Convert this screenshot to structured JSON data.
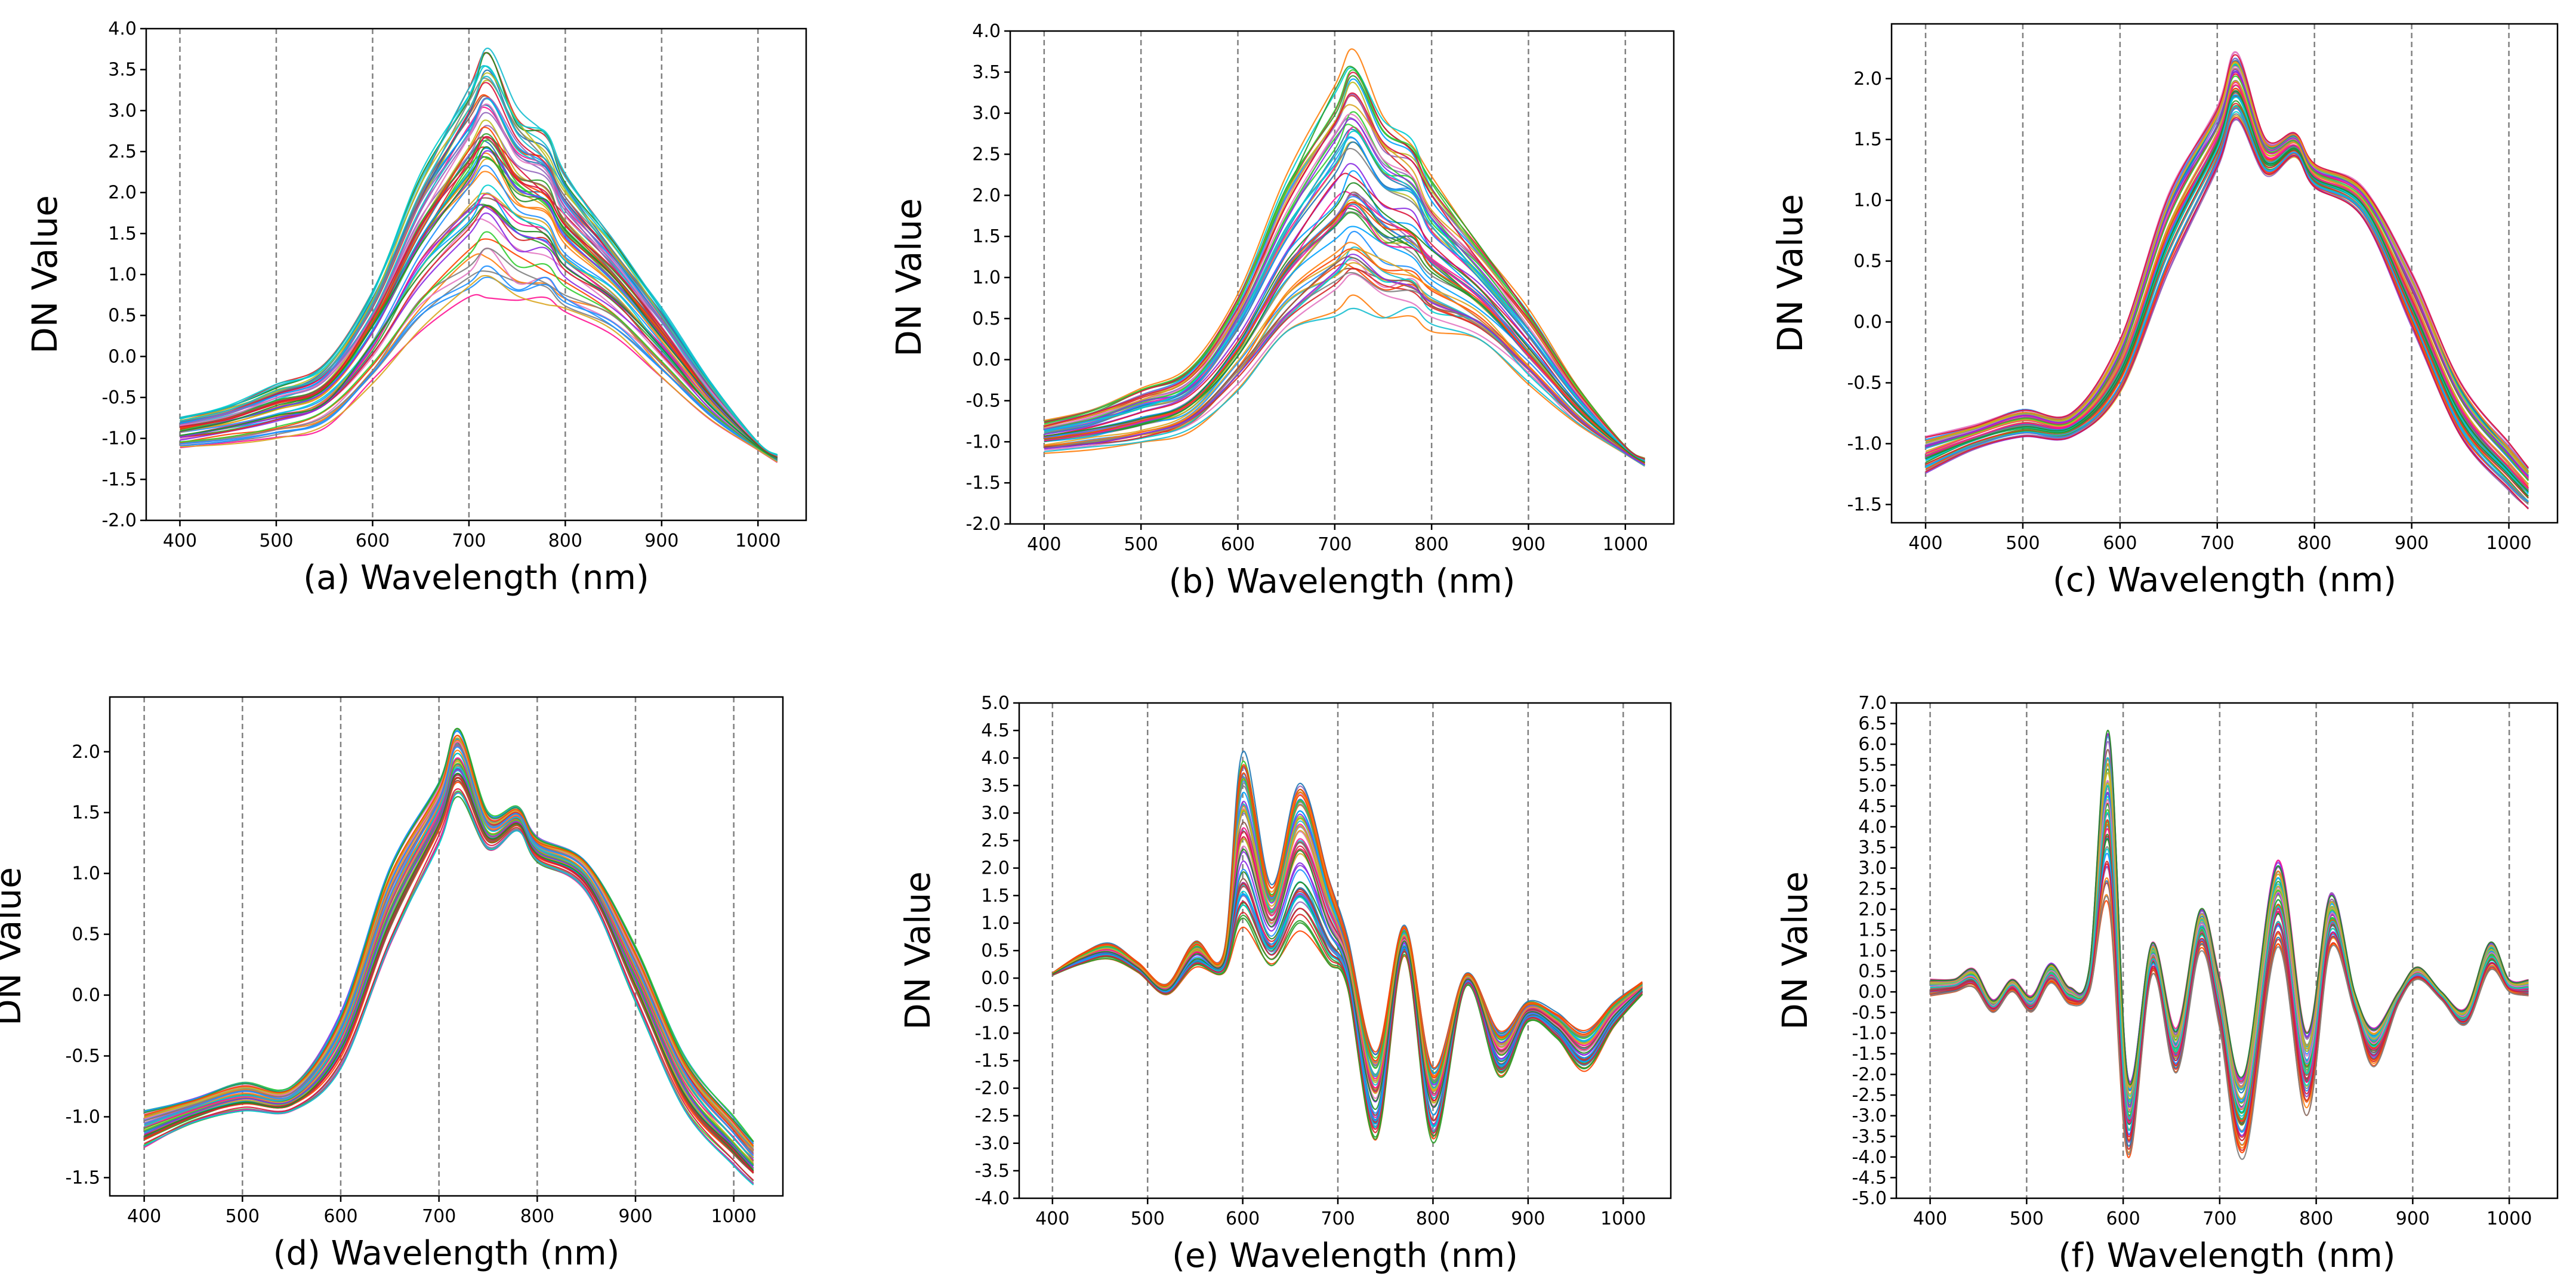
{
  "figure": {
    "background": "#ffffff",
    "axis_color": "#000000",
    "grid_color": "#808080",
    "palette": [
      "#1f77b4",
      "#ff7f0e",
      "#2ca02c",
      "#d62728",
      "#9467bd",
      "#8c564b",
      "#e377c2",
      "#7f7f7f",
      "#bcbd22",
      "#17becf",
      "#00a2ff",
      "#ff1493",
      "#32cd32",
      "#ff4500",
      "#1e90ff",
      "#daa520",
      "#8a2be2",
      "#00ced1",
      "#dc143c",
      "#228b22"
    ]
  },
  "chart_data": [
    {
      "id": "a",
      "type": "line",
      "title": "",
      "xlabel": "(a) Wavelength (nm)",
      "ylabel": "DN Value",
      "xlim": [
        365,
        1050
      ],
      "ylim": [
        -2.0,
        4.0
      ],
      "xticks": [
        400,
        500,
        600,
        700,
        800,
        900,
        1000
      ],
      "xtick_labels": [
        "400",
        "500",
        "600",
        "700",
        "800",
        "900",
        "1000"
      ],
      "yticks": [
        -2.0,
        -1.5,
        -1.0,
        -0.5,
        0.0,
        0.5,
        1.0,
        1.5,
        2.0,
        2.5,
        3.0,
        3.5,
        4.0
      ],
      "ytick_labels": [
        "-2.0",
        "-1.5",
        "-1.0",
        "-0.5",
        "0.0",
        "0.5",
        "1.0",
        "1.5",
        "2.0",
        "2.5",
        "3.0",
        "3.5",
        "4.0"
      ],
      "vgrid": [
        400,
        500,
        600,
        700,
        800,
        900,
        1000
      ],
      "series_count": 60,
      "wavelengths": [
        400,
        450,
        500,
        550,
        600,
        650,
        700,
        720,
        750,
        780,
        800,
        850,
        900,
        950,
        1000,
        1020
      ],
      "series_low": [
        -1.15,
        -1.1,
        -1.05,
        -0.9,
        -0.4,
        0.2,
        0.5,
        0.6,
        0.45,
        0.5,
        0.35,
        0.2,
        -0.3,
        -0.8,
        -1.15,
        -1.3
      ],
      "series_high": [
        -0.75,
        -0.6,
        -0.35,
        -0.1,
        0.8,
        2.2,
        3.3,
        3.7,
        3.0,
        2.7,
        2.2,
        1.4,
        0.6,
        -0.3,
        -1.05,
        -1.2
      ]
    },
    {
      "id": "b",
      "type": "line",
      "title": "",
      "xlabel": "(b) Wavelength (nm)",
      "ylabel": "DN Value",
      "xlim": [
        365,
        1050
      ],
      "ylim": [
        -2.0,
        4.0
      ],
      "xticks": [
        400,
        500,
        600,
        700,
        800,
        900,
        1000
      ],
      "xtick_labels": [
        "400",
        "500",
        "600",
        "700",
        "800",
        "900",
        "1000"
      ],
      "yticks": [
        -2.0,
        -1.5,
        -1.0,
        -0.5,
        0.0,
        0.5,
        1.0,
        1.5,
        2.0,
        2.5,
        3.0,
        3.5,
        4.0
      ],
      "ytick_labels": [
        "-2.0",
        "-1.5",
        "-1.0",
        "-0.5",
        "0.0",
        "0.5",
        "1.0",
        "1.5",
        "2.0",
        "2.5",
        "3.0",
        "3.5",
        "4.0"
      ],
      "vgrid": [
        400,
        500,
        600,
        700,
        800,
        900,
        1000
      ],
      "series_count": 60,
      "wavelengths": [
        400,
        450,
        500,
        550,
        600,
        650,
        700,
        720,
        750,
        780,
        800,
        850,
        900,
        950,
        1000,
        1020
      ],
      "series_low": [
        -1.15,
        -1.1,
        -1.05,
        -0.9,
        -0.4,
        0.2,
        0.5,
        0.6,
        0.45,
        0.5,
        0.35,
        0.2,
        -0.3,
        -0.8,
        -1.15,
        -1.3
      ],
      "series_high": [
        -0.75,
        -0.6,
        -0.35,
        -0.1,
        0.8,
        2.2,
        3.3,
        3.7,
        3.0,
        2.7,
        2.2,
        1.4,
        0.6,
        -0.3,
        -1.05,
        -1.2
      ]
    },
    {
      "id": "c",
      "type": "line",
      "title": "",
      "xlabel": "(c) Wavelength (nm)",
      "ylabel": "DN Value",
      "xlim": [
        365,
        1050
      ],
      "ylim": [
        -1.65,
        2.45
      ],
      "xticks": [
        400,
        500,
        600,
        700,
        800,
        900,
        1000
      ],
      "xtick_labels": [
        "400",
        "500",
        "600",
        "700",
        "800",
        "900",
        "1000"
      ],
      "yticks": [
        -1.5,
        -1.0,
        -0.5,
        0.0,
        0.5,
        1.0,
        1.5,
        2.0
      ],
      "ytick_labels": [
        "-1.5",
        "-1.0",
        "-0.5",
        "0.0",
        "0.5",
        "1.0",
        "1.5",
        "2.0"
      ],
      "vgrid": [
        400,
        500,
        600,
        700,
        800,
        900,
        1000
      ],
      "series_count": 60,
      "wavelengths": [
        400,
        450,
        500,
        550,
        600,
        650,
        700,
        720,
        750,
        780,
        800,
        850,
        900,
        950,
        1000,
        1020
      ],
      "series_low": [
        -1.25,
        -1.05,
        -0.95,
        -0.95,
        -0.6,
        0.4,
        1.25,
        1.65,
        1.2,
        1.35,
        1.1,
        0.85,
        -0.05,
        -0.95,
        -1.4,
        -1.55
      ],
      "series_high": [
        -0.95,
        -0.85,
        -0.72,
        -0.75,
        -0.15,
        1.05,
        1.75,
        2.2,
        1.5,
        1.55,
        1.3,
        1.1,
        0.4,
        -0.5,
        -1.0,
        -1.2
      ]
    },
    {
      "id": "d",
      "type": "line",
      "title": "",
      "xlabel": "(d) Wavelength (nm)",
      "ylabel": "DN Value",
      "xlim": [
        365,
        1050
      ],
      "ylim": [
        -1.65,
        2.45
      ],
      "xticks": [
        400,
        500,
        600,
        700,
        800,
        900,
        1000
      ],
      "xtick_labels": [
        "400",
        "500",
        "600",
        "700",
        "800",
        "900",
        "1000"
      ],
      "yticks": [
        -1.5,
        -1.0,
        -0.5,
        0.0,
        0.5,
        1.0,
        1.5,
        2.0
      ],
      "ytick_labels": [
        "-1.5",
        "-1.0",
        "-0.5",
        "0.0",
        "0.5",
        "1.0",
        "1.5",
        "2.0"
      ],
      "vgrid": [
        400,
        500,
        600,
        700,
        800,
        900,
        1000
      ],
      "series_count": 60,
      "wavelengths": [
        400,
        450,
        500,
        550,
        600,
        650,
        700,
        720,
        750,
        780,
        800,
        850,
        900,
        950,
        1000,
        1020
      ],
      "series_low": [
        -1.25,
        -1.05,
        -0.95,
        -0.95,
        -0.6,
        0.4,
        1.25,
        1.65,
        1.2,
        1.35,
        1.1,
        0.85,
        -0.05,
        -0.95,
        -1.4,
        -1.55
      ],
      "series_high": [
        -0.95,
        -0.85,
        -0.72,
        -0.75,
        -0.15,
        1.05,
        1.75,
        2.2,
        1.5,
        1.55,
        1.3,
        1.1,
        0.4,
        -0.5,
        -1.0,
        -1.2
      ]
    },
    {
      "id": "e",
      "type": "line",
      "title": "",
      "xlabel": "(e) Wavelength (nm)",
      "ylabel": "DN Value",
      "xlim": [
        365,
        1050
      ],
      "ylim": [
        -4.0,
        5.0
      ],
      "xticks": [
        400,
        500,
        600,
        700,
        800,
        900,
        1000
      ],
      "xtick_labels": [
        "400",
        "500",
        "600",
        "700",
        "800",
        "900",
        "1000"
      ],
      "yticks": [
        -4.0,
        -3.5,
        -3.0,
        -2.5,
        -2.0,
        -1.5,
        -1.0,
        -0.5,
        0.0,
        0.5,
        1.0,
        1.5,
        2.0,
        2.5,
        3.0,
        3.5,
        4.0,
        4.5,
        5.0
      ],
      "ytick_labels": [
        "-4.0",
        "-3.5",
        "-3.0",
        "-2.5",
        "-2.0",
        "-1.5",
        "-1.0",
        "-0.5",
        "0.0",
        "0.5",
        "1.0",
        "1.5",
        "2.0",
        "2.5",
        "3.0",
        "3.5",
        "4.0",
        "4.5",
        "5.0"
      ],
      "vgrid": [
        400,
        500,
        600,
        700,
        800,
        900,
        1000
      ],
      "series_count": 60,
      "wavelengths": [
        400,
        430,
        460,
        490,
        520,
        550,
        580,
        600,
        630,
        660,
        690,
        710,
        740,
        770,
        800,
        835,
        870,
        900,
        930,
        960,
        990,
        1020
      ],
      "series_low": [
        0.05,
        0.25,
        0.35,
        0.1,
        -0.3,
        0.2,
        0.1,
        0.8,
        0.2,
        0.9,
        0.2,
        -0.2,
        -3.0,
        0.4,
        -3.0,
        -0.15,
        -1.8,
        -0.8,
        -1.1,
        -1.7,
        -0.9,
        -0.3
      ],
      "series_high": [
        0.1,
        0.45,
        0.65,
        0.3,
        -0.1,
        0.7,
        0.5,
        4.3,
        1.8,
        3.8,
        2.0,
        0.8,
        -1.2,
        1.0,
        -1.5,
        0.1,
        -0.9,
        -0.4,
        -0.6,
        -0.9,
        -0.4,
        -0.05
      ]
    },
    {
      "id": "f",
      "type": "line",
      "title": "",
      "xlabel": "(f) Wavelength (nm)",
      "ylabel": "DN Value",
      "xlim": [
        365,
        1050
      ],
      "ylim": [
        -5.0,
        7.0
      ],
      "xticks": [
        400,
        500,
        600,
        700,
        800,
        900,
        1000
      ],
      "xtick_labels": [
        "400",
        "500",
        "600",
        "700",
        "800",
        "900",
        "1000"
      ],
      "yticks": [
        -5.0,
        -4.5,
        -4.0,
        -3.5,
        -3.0,
        -2.5,
        -2.0,
        -1.5,
        -1.0,
        -0.5,
        0.0,
        0.5,
        1.0,
        1.5,
        2.0,
        2.5,
        3.0,
        3.5,
        4.0,
        4.5,
        5.0,
        5.5,
        6.0,
        6.5,
        7.0
      ],
      "ytick_labels": [
        "-5.0",
        "-4.5",
        "-4.0",
        "-3.5",
        "-3.0",
        "-2.5",
        "-2.0",
        "-1.5",
        "-1.0",
        "-0.5",
        "0.0",
        "0.5",
        "1.0",
        "1.5",
        "2.0",
        "2.5",
        "3.0",
        "3.5",
        "4.0",
        "4.5",
        "5.0",
        "5.5",
        "6.0",
        "6.5",
        "7.0"
      ],
      "vgrid": [
        400,
        500,
        600,
        700,
        800,
        900,
        1000
      ],
      "series_count": 60,
      "wavelengths": [
        400,
        425,
        445,
        465,
        485,
        505,
        525,
        545,
        565,
        585,
        605,
        630,
        655,
        680,
        700,
        725,
        760,
        790,
        815,
        840,
        860,
        885,
        905,
        930,
        955,
        980,
        1000,
        1020
      ],
      "series_low": [
        -0.1,
        0.0,
        0.1,
        -0.5,
        0.0,
        -0.5,
        0.2,
        -0.3,
        0.0,
        2.0,
        -4.0,
        0.4,
        -2.0,
        1.0,
        -0.9,
        -4.0,
        1.0,
        -3.0,
        1.0,
        -0.5,
        -1.8,
        -0.3,
        0.3,
        -0.2,
        -0.8,
        0.5,
        0.0,
        -0.1
      ],
      "series_high": [
        0.3,
        0.3,
        0.55,
        -0.2,
        0.3,
        -0.1,
        0.7,
        0.1,
        0.6,
        6.3,
        -2.0,
        1.2,
        -0.9,
        2.0,
        0.3,
        -2.0,
        3.2,
        -1.0,
        2.4,
        0.0,
        -0.9,
        0.0,
        0.6,
        0.0,
        -0.4,
        1.2,
        0.3,
        0.3
      ]
    }
  ]
}
